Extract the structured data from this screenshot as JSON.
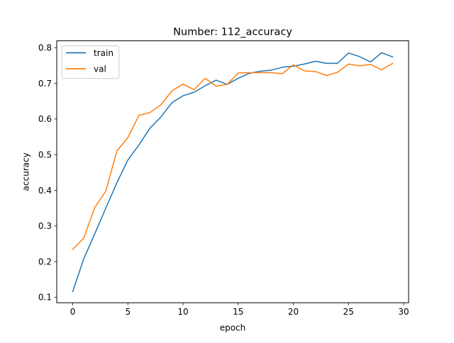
{
  "chart_data": {
    "type": "line",
    "title": "Number: 112_accuracy",
    "xlabel": "epoch",
    "ylabel": "accuracy",
    "xlim": [
      -1.45,
      30.45
    ],
    "ylim": [
      0.0845,
      0.8192
    ],
    "xticks": [
      0,
      5,
      10,
      15,
      20,
      25,
      30
    ],
    "yticks": [
      0.1,
      0.2,
      0.3,
      0.4,
      0.5,
      0.6,
      0.7,
      0.8
    ],
    "xtick_labels": [
      "0",
      "5",
      "10",
      "15",
      "20",
      "25",
      "30"
    ],
    "ytick_labels": [
      "0.1",
      "0.2",
      "0.3",
      "0.4",
      "0.5",
      "0.6",
      "0.7",
      "0.8"
    ],
    "grid": false,
    "legend": {
      "position": "top-left"
    },
    "x": [
      0,
      1,
      2,
      3,
      4,
      5,
      6,
      7,
      8,
      9,
      10,
      11,
      12,
      13,
      14,
      15,
      16,
      17,
      18,
      19,
      20,
      21,
      22,
      23,
      24,
      25,
      26,
      27,
      28,
      29
    ],
    "series": [
      {
        "name": "train",
        "color": "#1f77b4",
        "values": [
          0.116,
          0.208,
          0.278,
          0.35,
          0.421,
          0.485,
          0.527,
          0.574,
          0.606,
          0.646,
          0.665,
          0.675,
          0.693,
          0.709,
          0.697,
          0.714,
          0.728,
          0.734,
          0.737,
          0.745,
          0.748,
          0.754,
          0.762,
          0.756,
          0.756,
          0.785,
          0.775,
          0.76,
          0.786,
          0.774
        ]
      },
      {
        "name": "val",
        "color": "#ff7f0e",
        "values": [
          0.234,
          0.266,
          0.352,
          0.398,
          0.51,
          0.548,
          0.61,
          0.618,
          0.64,
          0.679,
          0.698,
          0.682,
          0.714,
          0.692,
          0.697,
          0.729,
          0.73,
          0.73,
          0.73,
          0.727,
          0.752,
          0.735,
          0.733,
          0.722,
          0.731,
          0.754,
          0.749,
          0.753,
          0.738,
          0.756
        ]
      }
    ]
  }
}
